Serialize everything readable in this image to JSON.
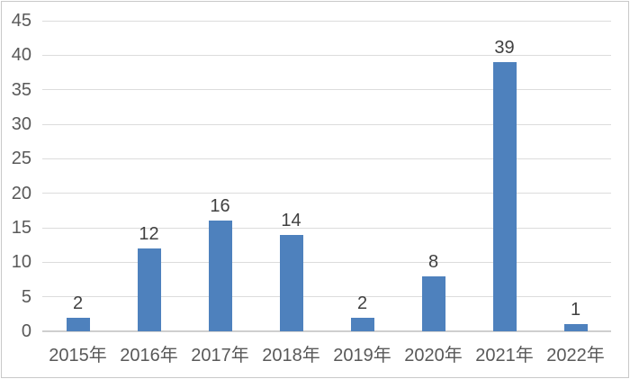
{
  "chart_data": {
    "type": "bar",
    "title": "",
    "categories": [
      "2015年",
      "2016年",
      "2017年",
      "2018年",
      "2019年",
      "2020年",
      "2021年",
      "2022年"
    ],
    "values": [
      2,
      12,
      16,
      14,
      2,
      8,
      39,
      1
    ],
    "data_labels": [
      "2",
      "12",
      "16",
      "14",
      "2",
      "8",
      "39",
      "1"
    ],
    "y_ticks": [
      "0",
      "5",
      "10",
      "15",
      "20",
      "25",
      "30",
      "35",
      "40",
      "45"
    ],
    "xlabel": "",
    "ylabel": "",
    "ylim": [
      0,
      45
    ],
    "grid": "horizontal",
    "legend": "none",
    "colors": {
      "bar": "#4E81BD",
      "value_label": "#404040",
      "tick_label": "#595959",
      "gridline": "#DCDCDC",
      "axis_line": "#CFCFCF",
      "chart_border": "#C9C9C9",
      "background": "#FFFFFF"
    }
  }
}
